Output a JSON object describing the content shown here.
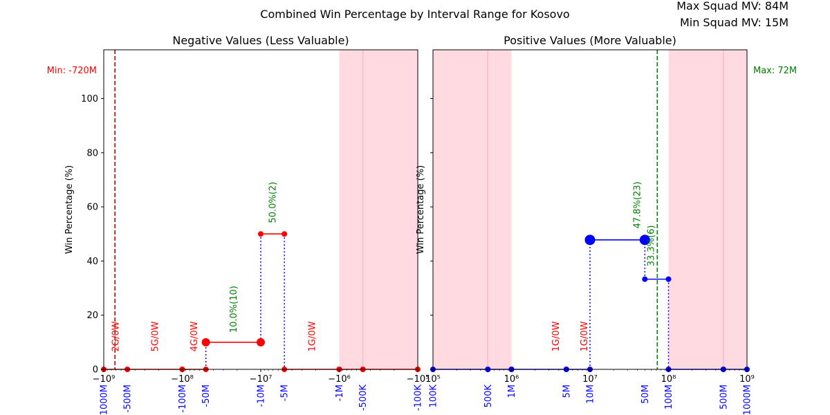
{
  "title": "Combined Win Percentage by Interval Range for Kosovo",
  "corner": {
    "max_mv": "Max Squad MV: 84M",
    "min_mv": "Min Squad MV: 15M"
  },
  "colors": {
    "neg": "#ff0000",
    "pos": "#0000ff",
    "ref_neg": "#cc0000",
    "ref_pos": "#008000",
    "band": "#ffb6c1",
    "annotation": "#008000",
    "blue_labels": "#0000ff"
  },
  "chart_data": [
    {
      "type": "line",
      "title": "Negative Values (Less Valuable)",
      "ylabel": "Win Percentage (%)",
      "xscale": "symlog-negative",
      "xlim": [
        -1000000000,
        -100000
      ],
      "ylim": [
        0,
        118
      ],
      "yticks": [
        0,
        20,
        40,
        60,
        80,
        100
      ],
      "xticks": [
        {
          "value": -1000000000,
          "label": "−10⁹"
        },
        {
          "value": -100000000,
          "label": "−10⁸"
        },
        {
          "value": -10000000,
          "label": "−10⁷"
        },
        {
          "value": -1000000,
          "label": "−10⁶"
        },
        {
          "value": -100000,
          "label": "−10⁵"
        }
      ],
      "interval_labels": [
        {
          "value": -1000000000,
          "label": "-1000M"
        },
        {
          "value": -500000000,
          "label": "-500M"
        },
        {
          "value": -100000000,
          "label": "-100M"
        },
        {
          "value": -50000000,
          "label": "-50M"
        },
        {
          "value": -10000000,
          "label": "-10M"
        },
        {
          "value": -5000000,
          "label": "-5M"
        },
        {
          "value": -1000000,
          "label": "-1M"
        },
        {
          "value": -500000,
          "label": "-500K"
        },
        {
          "value": -100000,
          "label": "-100K"
        }
      ],
      "segments": [
        {
          "x": [
            -1000000000,
            -500000000
          ],
          "y": [
            0,
            0
          ],
          "size": "small"
        },
        {
          "x": [
            -500000000,
            -100000000
          ],
          "y": [
            0,
            0
          ],
          "size": "small"
        },
        {
          "x": [
            -100000000,
            -50000000
          ],
          "y": [
            0,
            0
          ],
          "size": "small"
        },
        {
          "x": [
            -50000000,
            -10000000
          ],
          "y": [
            10,
            10
          ],
          "size": "medium"
        },
        {
          "x": [
            -10000000,
            -5000000
          ],
          "y": [
            50,
            50
          ],
          "size": "small"
        },
        {
          "x": [
            -5000000,
            -1000000
          ],
          "y": [
            0,
            0
          ],
          "size": "small"
        },
        {
          "x": [
            -1000000,
            -500000
          ],
          "y": [
            0,
            0
          ],
          "size": "small"
        },
        {
          "x": [
            -500000,
            -100000
          ],
          "y": [
            0,
            0
          ],
          "size": "small"
        }
      ],
      "win_labels": [
        {
          "x": -22000000,
          "y": 13.5,
          "text": "10.0%(10)"
        },
        {
          "x": -7000000,
          "y": 54,
          "text": "50.0%(2)"
        }
      ],
      "gw_labels": [
        {
          "x": -700000000,
          "y": 4,
          "text": "2G/0W"
        },
        {
          "x": -220000000,
          "y": 4,
          "text": "5G/0W"
        },
        {
          "x": -70000000,
          "y": 4,
          "text": "4G/0W"
        },
        {
          "x": -2200000,
          "y": 4,
          "text": "1G/0W"
        }
      ],
      "ref_line": {
        "x": -720000000,
        "label": "Min: -720M"
      },
      "band": [
        -1000000,
        -100000
      ],
      "band_lines": [
        -500000
      ]
    },
    {
      "type": "line",
      "title": "Positive Values (More Valuable)",
      "ylabel": "Win Percentage (%)",
      "xscale": "log",
      "xlim": [
        100000,
        1000000000
      ],
      "ylim": [
        0,
        118
      ],
      "yticks": [
        0,
        20,
        40,
        60,
        80,
        100
      ],
      "xticks": [
        {
          "value": 100000,
          "label": "10⁵"
        },
        {
          "value": 1000000,
          "label": "10⁶"
        },
        {
          "value": 10000000,
          "label": "10⁷"
        },
        {
          "value": 100000000,
          "label": "10⁸"
        },
        {
          "value": 1000000000,
          "label": "10⁹"
        }
      ],
      "interval_labels": [
        {
          "value": 100000,
          "label": "100K"
        },
        {
          "value": 500000,
          "label": "500K"
        },
        {
          "value": 1000000,
          "label": "1M"
        },
        {
          "value": 5000000,
          "label": "5M"
        },
        {
          "value": 10000000,
          "label": "10M"
        },
        {
          "value": 50000000,
          "label": "50M"
        },
        {
          "value": 100000000,
          "label": "100M"
        },
        {
          "value": 500000000,
          "label": "500M"
        },
        {
          "value": 1000000000,
          "label": "1000M"
        }
      ],
      "segments": [
        {
          "x": [
            100000,
            500000
          ],
          "y": [
            0,
            0
          ],
          "size": "small"
        },
        {
          "x": [
            500000,
            1000000
          ],
          "y": [
            0,
            0
          ],
          "size": "small"
        },
        {
          "x": [
            1000000,
            5000000
          ],
          "y": [
            0,
            0
          ],
          "size": "small"
        },
        {
          "x": [
            5000000,
            10000000
          ],
          "y": [
            0,
            0
          ],
          "size": "small"
        },
        {
          "x": [
            10000000,
            50000000
          ],
          "y": [
            47.8,
            47.8
          ],
          "size": "large"
        },
        {
          "x": [
            50000000,
            100000000
          ],
          "y": [
            33.3,
            33.3
          ],
          "size": "small"
        },
        {
          "x": [
            100000000,
            500000000
          ],
          "y": [
            0,
            0
          ],
          "size": "small"
        },
        {
          "x": [
            500000000,
            1000000000
          ],
          "y": [
            0,
            0
          ],
          "size": "small"
        }
      ],
      "win_labels": [
        {
          "x": 40000000,
          "y": 52,
          "text": "47.8%(23)"
        },
        {
          "x": 60000000,
          "y": 38,
          "text": "33.3%(6)"
        }
      ],
      "gw_labels": [
        {
          "x": 3700000,
          "y": 4,
          "text": "1G/0W"
        },
        {
          "x": 8500000,
          "y": 4,
          "text": "1G/0W"
        }
      ],
      "ref_line": {
        "x": 72000000,
        "label": "Max: 72M"
      },
      "bands": [
        [
          100000,
          1000000
        ],
        [
          100000000,
          1000000000
        ]
      ],
      "band_lines": [
        500000,
        500000000
      ]
    }
  ]
}
